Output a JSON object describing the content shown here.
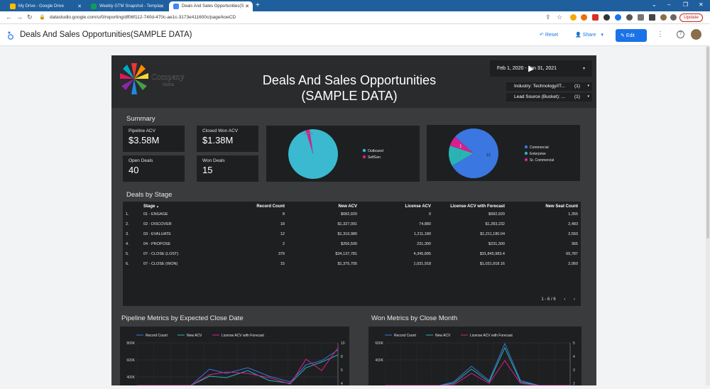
{
  "browser": {
    "tabs": [
      {
        "label": "My Drive - Google Drive",
        "icon_color": "#fbbc04"
      },
      {
        "label": "Weekly GTM Snapshot - Templa",
        "icon_color": "#0f9d58"
      },
      {
        "label": "Deals And Sales Opportunities(S",
        "icon_color": "#4285f4"
      }
    ],
    "url": "datastudio.google.com/u/0/reporting/df06f112-740d-470c-ae1c-3173e411600c/page/koeCD",
    "update_label": "Update"
  },
  "app": {
    "title": "Deals And Sales Opportunities(SAMPLE DATA)",
    "reset_label": "Reset",
    "share_label": "Share",
    "edit_label": "Edit"
  },
  "dashboard": {
    "logo_text_1": "Company",
    "logo_text_2": "Name",
    "title_line1": "Deals And Sales Opportunities",
    "title_line2": "(SAMPLE DATA)",
    "date_range": "Feb 1, 2020 - Jan 31, 2021",
    "filters": [
      {
        "label": "Industry: Technology/IT...",
        "count": "(1)"
      },
      {
        "label": "Lead Source (Bucket): ...",
        "count": "(1)"
      }
    ],
    "summary_title": "Summary",
    "kpis": [
      {
        "label": "Pipeline ACV",
        "value": "$3.58M"
      },
      {
        "label": "Closed Won ACV",
        "value": "$1.38M"
      },
      {
        "label": "Open Deals",
        "value": "40"
      },
      {
        "label": "Won Deals",
        "value": "15"
      }
    ],
    "deals_title": "Deals by Stage",
    "pager_text": "1 - 6 / 6",
    "pipeline_title": "Pipeline Metrics by Expected Close Date",
    "won_title": "Won Metrics by Close Month",
    "colors": {
      "cyan": "#3ab9d0",
      "magenta": "#d6208f",
      "blue": "#3a77e0",
      "teal": "#2ab3b3"
    }
  },
  "table": {
    "headers": [
      "Stage",
      "Record Count",
      "New ACV",
      "License ACV",
      "License ACV with Forecast",
      "New Seat Count"
    ],
    "sort_indicator": "▲",
    "rows": [
      {
        "n": "1.",
        "stage": "01 - ENGAGE",
        "count": "8",
        "new_acv": "$682,920",
        "license": "0",
        "forecast": "$682,920",
        "seats": "1,355"
      },
      {
        "n": "2.",
        "stage": "02 - DISCOVER",
        "count": "18",
        "new_acv": "$1,327,091",
        "license": "74,880",
        "forecast": "$1,283,232",
        "seats": "2,483"
      },
      {
        "n": "3.",
        "stage": "03 - EVALUATE",
        "count": "12",
        "new_acv": "$1,316,980",
        "license": "1,211,180",
        "forecast": "$1,211,180.04",
        "seats": "2,550"
      },
      {
        "n": "4.",
        "stage": "04 - PROPOSE",
        "count": "2",
        "new_acv": "$256,500",
        "license": "231,300",
        "forecast": "$231,300",
        "seats": "365"
      },
      {
        "n": "5.",
        "stage": "07 - CLOSE (LOST)",
        "count": "379",
        "new_acv": "$34,137,781",
        "license": "4,345,895",
        "forecast": "$31,845,983.4",
        "seats": "65,787"
      },
      {
        "n": "6.",
        "stage": "07 - CLOSE (WON)",
        "count": "15",
        "new_acv": "$1,375,705",
        "license": "1,031,918",
        "forecast": "$1,031,918.16",
        "seats": "2,950"
      }
    ]
  },
  "chart_data": [
    {
      "type": "pie",
      "labels": [
        "Outbound",
        "SelfGen"
      ],
      "values": [
        97.6,
        2.4
      ],
      "colors": [
        "#3ab9d0",
        "#d6208f"
      ],
      "slice_label": "2.4%"
    },
    {
      "type": "pie",
      "labels": [
        "Commercial",
        "Enterprise",
        "Sr. Commercial"
      ],
      "values": [
        12,
        2,
        1
      ],
      "colors": [
        "#3a77e0",
        "#2ab3b3",
        "#d6208f"
      ],
      "slice_labels": [
        "12",
        "2",
        "1"
      ]
    },
    {
      "type": "line",
      "title": "Pipeline Metrics by Expected Close Date",
      "series": [
        {
          "name": "Record Count",
          "color": "#3a77e0"
        },
        {
          "name": "New ACV",
          "color": "#2ab3b3"
        },
        {
          "name": "License ACV with Forecast",
          "color": "#d6208f"
        }
      ],
      "y_left_ticks": [
        "800K",
        "600K",
        "400K"
      ],
      "y_right_ticks": [
        "10",
        "8",
        "6",
        "4"
      ]
    },
    {
      "type": "line",
      "title": "Won Metrics by Close Month",
      "series": [
        {
          "name": "Record Count",
          "color": "#3a77e0"
        },
        {
          "name": "New ACV",
          "color": "#2ab3b3"
        },
        {
          "name": "License ACV with Forecast",
          "color": "#d6208f"
        }
      ],
      "y_left_ticks": [
        "600K",
        "400K"
      ],
      "y_right_ticks": [
        "5",
        "4",
        "3",
        "2"
      ]
    }
  ]
}
